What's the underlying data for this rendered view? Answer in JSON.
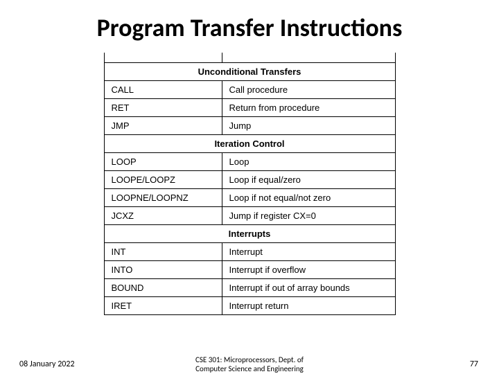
{
  "title": "Program Transfer Instructions",
  "sections": [
    {
      "header": "Unconditional Transfers",
      "rows": [
        {
          "mnemonic": "CALL",
          "desc": "Call procedure"
        },
        {
          "mnemonic": "RET",
          "desc": "Return from procedure"
        },
        {
          "mnemonic": "JMP",
          "desc": "Jump"
        }
      ]
    },
    {
      "header": "Iteration Control",
      "rows": [
        {
          "mnemonic": "LOOP",
          "desc": "Loop"
        },
        {
          "mnemonic": "LOOPE/LOOPZ",
          "desc": "Loop if equal/zero"
        },
        {
          "mnemonic": "LOOPNE/LOOPNZ",
          "desc": "Loop if not equal/not zero"
        },
        {
          "mnemonic": "JCXZ",
          "desc": "Jump if register CX=0"
        }
      ]
    },
    {
      "header": "Interrupts",
      "rows": [
        {
          "mnemonic": "INT",
          "desc": "Interrupt"
        },
        {
          "mnemonic": "INTO",
          "desc": "Interrupt if overflow"
        },
        {
          "mnemonic": "BOUND",
          "desc": "Interrupt if out of array bounds"
        },
        {
          "mnemonic": "IRET",
          "desc": "Interrupt return"
        }
      ]
    }
  ],
  "footer": {
    "date": "08 January 2022",
    "center_line1": "CSE 301: Microprocessors, Dept. of",
    "center_line2": "Computer Science and Engineering",
    "page": "77"
  },
  "style": {
    "title_fontsize": 36,
    "cell_fontsize": 13,
    "footer_fontsize": 12,
    "col_left_width": 170,
    "col_right_width": 250,
    "border_color": "#000000",
    "background": "#ffffff"
  }
}
